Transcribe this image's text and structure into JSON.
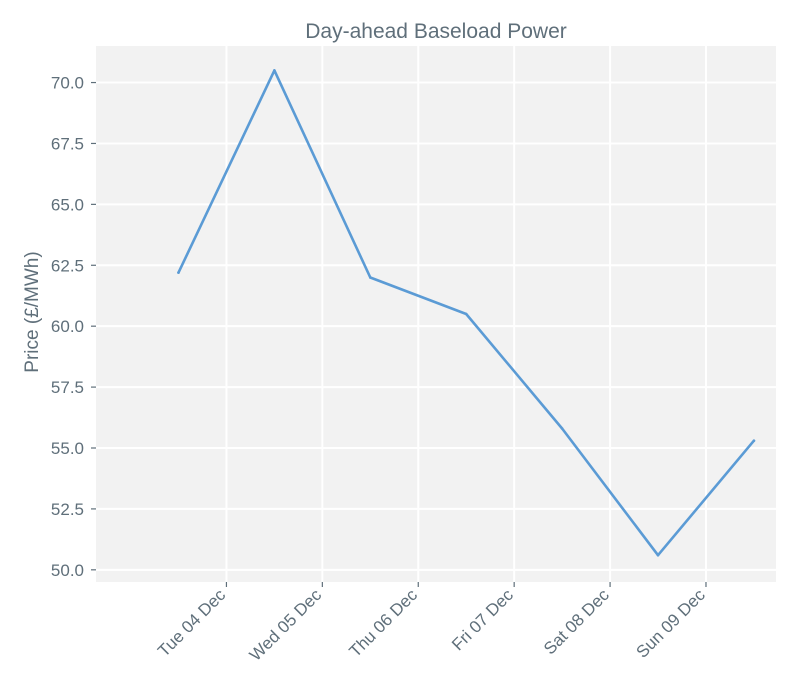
{
  "chart_data": {
    "type": "line",
    "title": "Day-ahead Baseload Power",
    "xlabel": "",
    "ylabel": "Price (£/MWh)",
    "ylim": [
      49.5,
      71.5
    ],
    "yticks": [
      50.0,
      52.5,
      55.0,
      57.5,
      60.0,
      62.5,
      65.0,
      67.5,
      70.0
    ],
    "ytick_labels": [
      "50.0",
      "52.5",
      "55.0",
      "57.5",
      "60.0",
      "62.5",
      "65.0",
      "67.5",
      "70.0"
    ],
    "xtick_labels": [
      "Tue 04 Dec",
      "Wed 05 Dec",
      "Thu 06 Dec",
      "Fri 07 Dec",
      "Sat 08 Dec",
      "Sun 09 Dec"
    ],
    "grid": true,
    "colors": {
      "line": "#5b9bd5",
      "plot_bg": "#f2f2f2",
      "grid": "#ffffff",
      "text": "#5f6f7a"
    },
    "series": [
      {
        "x": [
          "2018-12-03 12:00",
          "2018-12-04 12:00",
          "2018-12-05 12:00",
          "2018-12-06 12:00",
          "2018-12-07 12:00",
          "2018-12-08 12:00",
          "2018-12-09 12:00"
        ],
        "values": [
          62.2,
          70.5,
          62.0,
          60.5,
          55.8,
          50.6,
          55.3
        ]
      }
    ]
  }
}
